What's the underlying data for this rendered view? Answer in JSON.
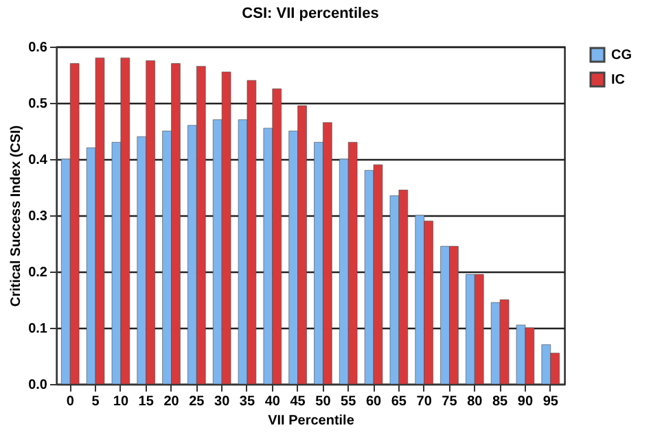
{
  "chart_data": {
    "type": "bar",
    "title": "CSI: VII percentiles",
    "xlabel": "VII Percentile",
    "ylabel": "Critical Success Index (CSI)",
    "categories": [
      "0",
      "5",
      "10",
      "15",
      "20",
      "25",
      "30",
      "35",
      "40",
      "45",
      "50",
      "55",
      "60",
      "65",
      "70",
      "75",
      "80",
      "85",
      "90",
      "95"
    ],
    "series": [
      {
        "name": "CG",
        "color": "#7db5ef",
        "values": [
          0.4,
          0.42,
          0.43,
          0.44,
          0.45,
          0.46,
          0.47,
          0.47,
          0.455,
          0.45,
          0.43,
          0.4,
          0.38,
          0.335,
          0.3,
          0.245,
          0.195,
          0.145,
          0.105,
          0.07
        ]
      },
      {
        "name": "IC",
        "color": "#d83a3c",
        "values": [
          0.57,
          0.58,
          0.58,
          0.575,
          0.57,
          0.565,
          0.555,
          0.54,
          0.525,
          0.495,
          0.465,
          0.43,
          0.39,
          0.345,
          0.29,
          0.245,
          0.195,
          0.15,
          0.1,
          0.055
        ]
      }
    ],
    "ylim": [
      0,
      0.6
    ],
    "yticks": [
      {
        "value": 0,
        "label": "0.0"
      },
      {
        "value": 0.1,
        "label": "0.1"
      },
      {
        "value": 0.2,
        "label": "0.2"
      },
      {
        "value": 0.3,
        "label": "0.3"
      },
      {
        "value": 0.4,
        "label": "0.4"
      },
      {
        "value": 0.5,
        "label": "0.5"
      },
      {
        "value": 0.6,
        "label": "0.6"
      }
    ],
    "grid": "y",
    "legend": "right"
  }
}
